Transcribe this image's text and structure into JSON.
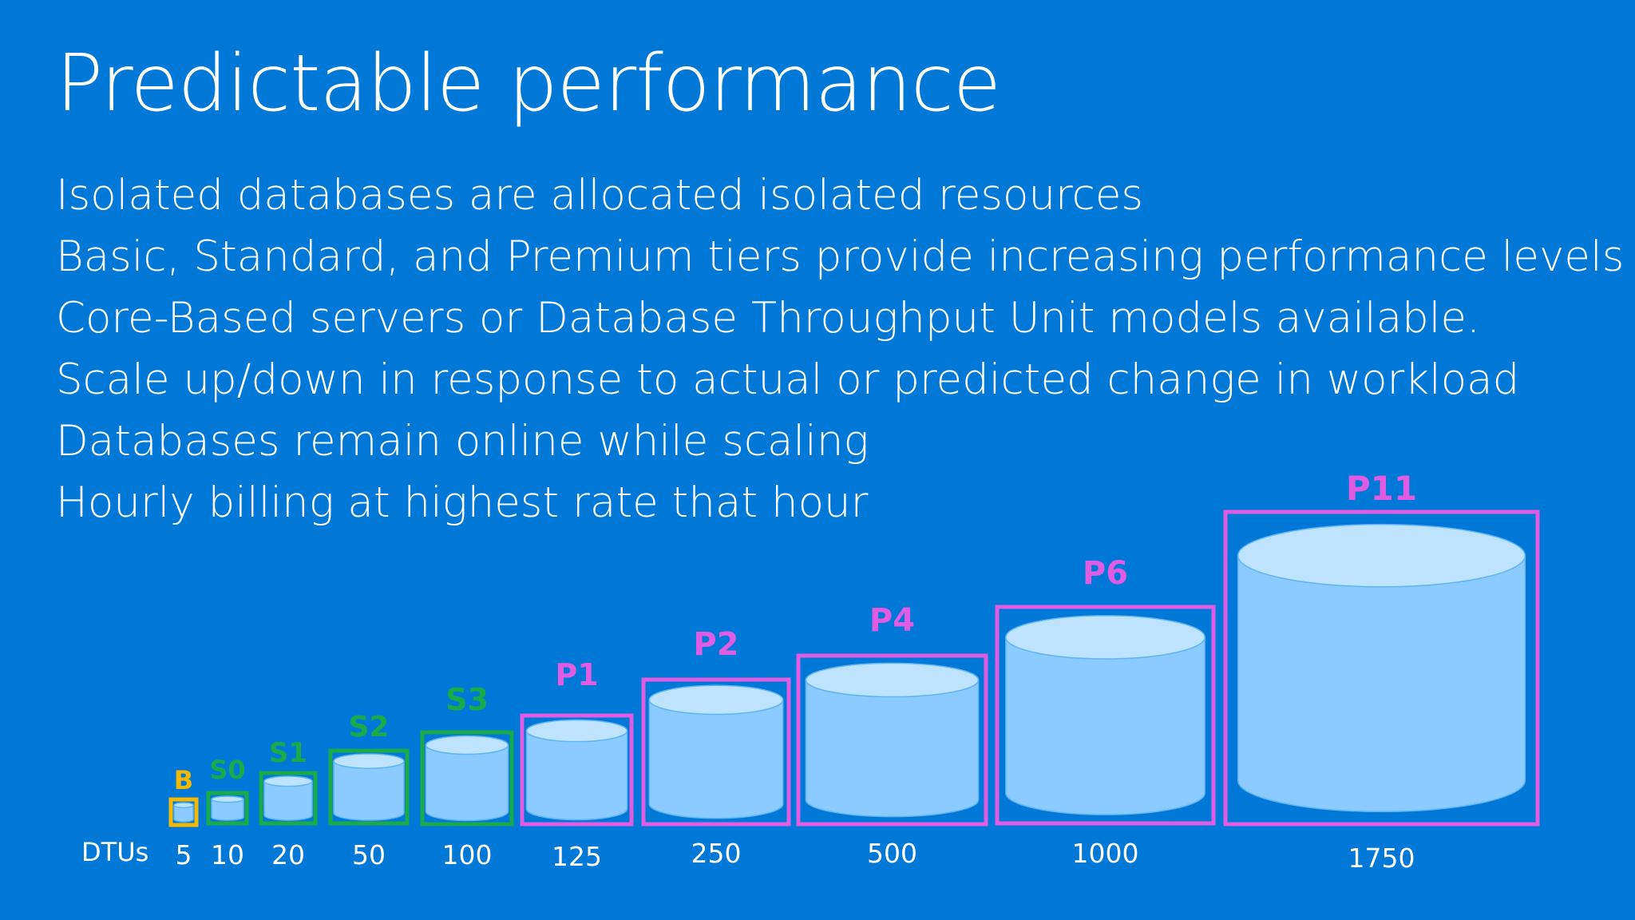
{
  "slide": {
    "title": "Predictable performance",
    "bullets": [
      "Isolated databases are allocated isolated resources",
      "Basic, Standard, and Premium tiers provide increasing performance levels",
      "Core-Based servers or Database Throughput Unit models available.",
      "Scale up/down in response to actual or predicted change in workload",
      "Databases remain online while scaling",
      "Hourly billing at highest rate that hour"
    ]
  },
  "diagram": {
    "axis_label": "DTUs",
    "colors": {
      "background": "#0078d7",
      "basic": "#f5b800",
      "standard": "#1aaa4a",
      "premium": "#e05ce3",
      "cylinder_body": "#8ccbff",
      "cylinder_top": "#bde3ff"
    },
    "tiers": [
      {
        "name": "B",
        "dtu": "5",
        "group": "basic"
      },
      {
        "name": "S0",
        "dtu": "10",
        "group": "standard"
      },
      {
        "name": "S1",
        "dtu": "20",
        "group": "standard"
      },
      {
        "name": "S2",
        "dtu": "50",
        "group": "standard"
      },
      {
        "name": "S3",
        "dtu": "100",
        "group": "standard"
      },
      {
        "name": "P1",
        "dtu": "125",
        "group": "premium"
      },
      {
        "name": "P2",
        "dtu": "250",
        "group": "premium"
      },
      {
        "name": "P4",
        "dtu": "500",
        "group": "premium"
      },
      {
        "name": "P6",
        "dtu": "1000",
        "group": "premium"
      },
      {
        "name": "P11",
        "dtu": "1750",
        "group": "premium"
      }
    ]
  }
}
